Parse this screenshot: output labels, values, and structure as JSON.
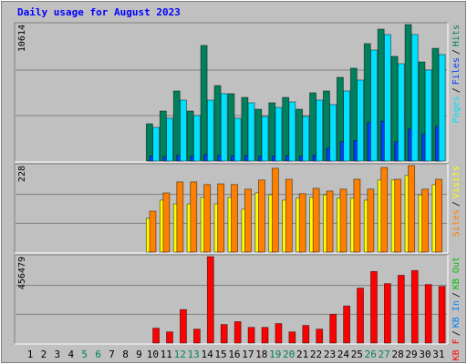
{
  "chart_data": [
    {
      "type": "bar",
      "title": "Daily usage for August 2023",
      "ylim": [
        0,
        10614
      ],
      "yticks": [
        10614
      ],
      "legend_separator": "/",
      "series": [
        {
          "name": "Pages",
          "color": "#00e0ff",
          "values": [
            0,
            0,
            0,
            0,
            0,
            0,
            0,
            0,
            0,
            2620,
            3330,
            4740,
            3540,
            4740,
            5240,
            3330,
            4530,
            3470,
            4170,
            4600,
            3470,
            4740,
            4390,
            5450,
            6300,
            8630,
            9840,
            7570,
            9840,
            7080,
            8280
          ]
        },
        {
          "name": "Files",
          "color": "#0040ff",
          "values": [
            0,
            0,
            0,
            0,
            0,
            0,
            0,
            0,
            0,
            400,
            350,
            450,
            380,
            500,
            450,
            400,
            420,
            380,
            400,
            420,
            380,
            450,
            1000,
            1500,
            1600,
            3000,
            3100,
            1500,
            2500,
            2100,
            2700
          ]
        },
        {
          "name": "Hits",
          "color": "#00805c",
          "values": [
            0,
            0,
            0,
            0,
            0,
            0,
            0,
            0,
            0,
            2900,
            3890,
            5450,
            3890,
            8990,
            5870,
            5240,
            4950,
            4030,
            4530,
            4950,
            4030,
            5310,
            5450,
            6510,
            7220,
            9130,
            10260,
            8140,
            10614,
            7710,
            8770
          ]
        }
      ]
    },
    {
      "type": "bar",
      "ylim": [
        0,
        228
      ],
      "yticks": [
        228
      ],
      "legend_separator": "/",
      "series": [
        {
          "name": "Sites",
          "color": "#ff8000",
          "values": [
            0,
            0,
            0,
            0,
            0,
            0,
            0,
            0,
            0,
            108,
            156,
            185,
            185,
            178,
            180,
            178,
            166,
            190,
            221,
            192,
            154,
            168,
            161,
            166,
            192,
            166,
            223,
            192,
            228,
            166,
            192
          ]
        },
        {
          "name": "Visits",
          "color": "#ffff00",
          "values": [
            0,
            0,
            0,
            0,
            0,
            0,
            0,
            0,
            0,
            89,
            137,
            127,
            127,
            144,
            127,
            144,
            113,
            156,
            151,
            137,
            142,
            144,
            151,
            142,
            142,
            137,
            190,
            190,
            202,
            151,
            178
          ]
        }
      ]
    },
    {
      "type": "bar",
      "ylim": [
        0,
        456479
      ],
      "yticks": [
        456479
      ],
      "legend_separator": "/",
      "categories": [
        "1",
        "2",
        "3",
        "4",
        "5",
        "6",
        "7",
        "8",
        "9",
        "10",
        "11",
        "12",
        "13",
        "14",
        "15",
        "16",
        "17",
        "18",
        "19",
        "20",
        "21",
        "22",
        "23",
        "24",
        "25",
        "26",
        "27",
        "28",
        "29",
        "30",
        "31"
      ],
      "category_colors": [
        "#000000",
        "#000000",
        "#000000",
        "#000000",
        "#00805c",
        "#00805c",
        "#000000",
        "#000000",
        "#000000",
        "#000000",
        "#000000",
        "#00805c",
        "#00805c",
        "#000000",
        "#000000",
        "#000000",
        "#000000",
        "#000000",
        "#00805c",
        "#00805c",
        "#000000",
        "#000000",
        "#000000",
        "#000000",
        "#000000",
        "#00805c",
        "#00805c",
        "#000000",
        "#000000",
        "#000000",
        "#000000"
      ],
      "series": [
        {
          "name": "KB F",
          "color": "#ff0000",
          "values": [
            0,
            0,
            0,
            0,
            0,
            0,
            0,
            0,
            0,
            78500,
            59000,
            177000,
            73600,
            456479,
            98000,
            113000,
            83000,
            83000,
            103000,
            59000,
            93000,
            73600,
            152000,
            196000,
            290000,
            378000,
            314000,
            358000,
            383000,
            309000,
            299000
          ]
        },
        {
          "name": "KB In",
          "color": "#0080ff",
          "values": [
            0,
            0,
            0,
            0,
            0,
            0,
            0,
            0,
            0,
            0,
            0,
            0,
            0,
            0,
            0,
            0,
            0,
            0,
            0,
            0,
            0,
            0,
            0,
            0,
            0,
            0,
            0,
            0,
            0,
            0,
            0
          ]
        },
        {
          "name": "KB Out",
          "color": "#00c000",
          "values": [
            0,
            0,
            0,
            0,
            0,
            0,
            0,
            0,
            0,
            0,
            0,
            0,
            0,
            0,
            0,
            0,
            0,
            0,
            0,
            0,
            0,
            0,
            0,
            0,
            0,
            0,
            0,
            0,
            0,
            0,
            0
          ]
        }
      ]
    }
  ]
}
